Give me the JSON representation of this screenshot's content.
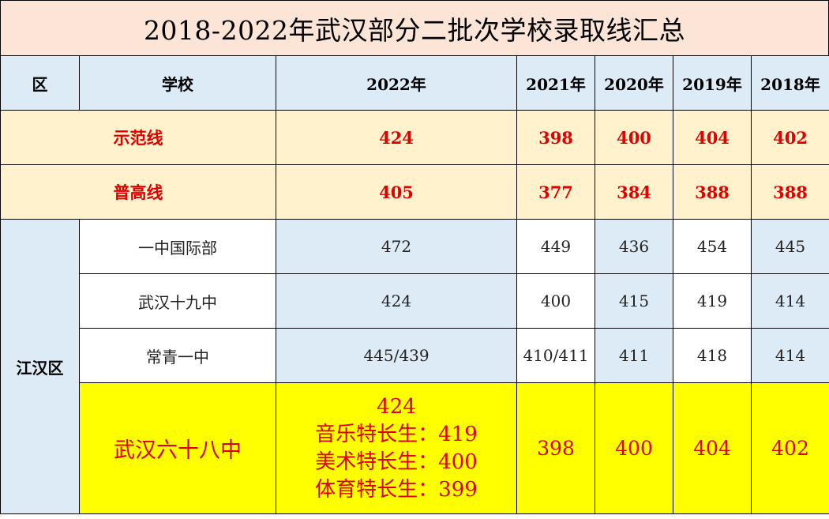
{
  "title": "2018-2022年武汉部分二批次学校录取线汇总",
  "headers": {
    "district": "区",
    "school": "学校",
    "y2022": "2022年",
    "y2021": "2021年",
    "y2020": "2020年",
    "y2019": "2019年",
    "y2018": "2018年"
  },
  "lines": [
    {
      "label": "示范线",
      "v2022": "424",
      "v2021": "398",
      "v2020": "400",
      "v2019": "404",
      "v2018": "402"
    },
    {
      "label": "普高线",
      "v2022": "405",
      "v2021": "377",
      "v2020": "384",
      "v2019": "388",
      "v2018": "388"
    }
  ],
  "district_name": "江汉区",
  "schools": [
    {
      "name": "一中国际部",
      "v2022": "472",
      "v2021": "449",
      "v2020": "436",
      "v2019": "454",
      "v2018": "445"
    },
    {
      "name": "武汉十九中",
      "v2022": "424",
      "v2021": "400",
      "v2020": "415",
      "v2019": "419",
      "v2018": "414"
    },
    {
      "name": "常青一中",
      "v2022": "445/439",
      "v2021": "410/411",
      "v2020": "411",
      "v2019": "418",
      "v2018": "414"
    }
  ],
  "highlight": {
    "name": "武汉六十八中",
    "v2022_lines": [
      "424",
      "音乐特长生：419",
      "美术特长生：400",
      "体育特长生：399"
    ],
    "v2021": "398",
    "v2020": "400",
    "v2019": "404",
    "v2018": "402"
  }
}
